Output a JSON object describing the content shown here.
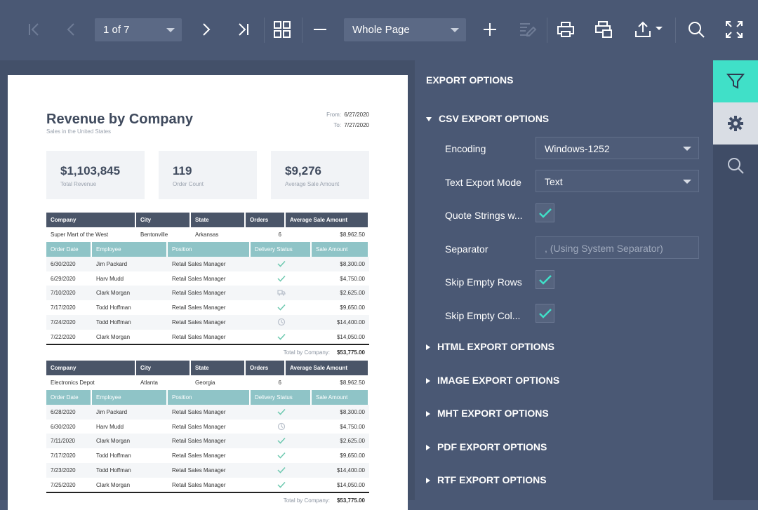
{
  "toolbar": {
    "page_selector": "1 of 7",
    "zoom_selector": "Whole Page",
    "icons": [
      "first-page-icon",
      "prev-page-icon",
      "next-page-icon",
      "last-page-icon",
      "multipage-icon",
      "zoom-out-icon",
      "zoom-in-icon",
      "editing-fields-icon",
      "print-icon",
      "print-page-icon",
      "export-icon",
      "search-icon",
      "fullscreen-icon"
    ]
  },
  "report": {
    "title": "Revenue by Company",
    "subtitle": "Sales in the United States",
    "from_label": "From:",
    "from_value": "6/27/2020",
    "to_label": "To:",
    "to_value": "7/27/2020",
    "kpis": [
      {
        "value": "$1,103,845",
        "label": "Total Revenue"
      },
      {
        "value": "119",
        "label": "Order Count"
      },
      {
        "value": "$9,276",
        "label": "Average Sale Amount"
      }
    ],
    "company_headers": [
      "Company",
      "City",
      "State",
      "Orders",
      "Average Sale Amount"
    ],
    "order_headers": [
      "Order Date",
      "Employee",
      "Position",
      "Delivery Status",
      "Sale Amount"
    ],
    "groups": [
      {
        "company": "Super Mart of the West",
        "city": "Bentonville",
        "state": "Arkansas",
        "orders": "6",
        "avg": "$8,962.50",
        "rows": [
          {
            "date": "6/30/2020",
            "employee": "Jim Packard",
            "position": "Retail Sales Manager",
            "status": "delivered",
            "amount": "$8,300.00"
          },
          {
            "date": "6/29/2020",
            "employee": "Harv Mudd",
            "position": "Retail Sales Manager",
            "status": "delivered",
            "amount": "$4,750.00"
          },
          {
            "date": "7/10/2020",
            "employee": "Clark Morgan",
            "position": "Retail Sales Manager",
            "status": "in-transit",
            "amount": "$2,625.00"
          },
          {
            "date": "7/17/2020",
            "employee": "Todd Hoffman",
            "position": "Retail Sales Manager",
            "status": "delivered",
            "amount": "$9,650.00"
          },
          {
            "date": "7/24/2020",
            "employee": "Todd Hoffman",
            "position": "Retail Sales Manager",
            "status": "pending",
            "amount": "$14,400.00"
          },
          {
            "date": "7/22/2020",
            "employee": "Clark Morgan",
            "position": "Retail Sales Manager",
            "status": "delivered",
            "amount": "$14,050.00"
          }
        ],
        "total_label": "Total by Company:",
        "total_value": "$53,775.00"
      },
      {
        "company": "Electronics Depot",
        "city": "Atlanta",
        "state": "Georgia",
        "orders": "6",
        "avg": "$8,962.50",
        "rows": [
          {
            "date": "6/28/2020",
            "employee": "Jim Packard",
            "position": "Retail Sales Manager",
            "status": "delivered",
            "amount": "$8,300.00"
          },
          {
            "date": "6/30/2020",
            "employee": "Harv Mudd",
            "position": "Retail Sales Manager",
            "status": "pending",
            "amount": "$4,750.00"
          },
          {
            "date": "7/11/2020",
            "employee": "Clark Morgan",
            "position": "Retail Sales Manager",
            "status": "delivered",
            "amount": "$2,625.00"
          },
          {
            "date": "7/17/2020",
            "employee": "Todd Hoffman",
            "position": "Retail Sales Manager",
            "status": "delivered",
            "amount": "$9,650.00"
          },
          {
            "date": "7/23/2020",
            "employee": "Todd Hoffman",
            "position": "Retail Sales Manager",
            "status": "delivered",
            "amount": "$14,400.00"
          },
          {
            "date": "7/25/2020",
            "employee": "Clark Morgan",
            "position": "Retail Sales Manager",
            "status": "delivered",
            "amount": "$14,050.00"
          }
        ],
        "total_label": "Total by Company:",
        "total_value": "$53,775.00"
      }
    ]
  },
  "panel": {
    "title": "EXPORT OPTIONS",
    "csv_section": "CSV EXPORT OPTIONS",
    "fields": {
      "encoding_label": "Encoding",
      "encoding_value": "Windows-1252",
      "text_mode_label": "Text Export Mode",
      "text_mode_value": "Text",
      "quote_label": "Quote Strings w...",
      "quote_checked": true,
      "separator_label": "Separator",
      "separator_placeholder": ", (Using System Separator)",
      "skip_rows_label": "Skip Empty Rows",
      "skip_rows_checked": true,
      "skip_cols_label": "Skip Empty Col...",
      "skip_cols_checked": true
    },
    "collapsed_sections": [
      "HTML EXPORT OPTIONS",
      "IMAGE EXPORT OPTIONS",
      "MHT EXPORT OPTIONS",
      "PDF EXPORT OPTIONS",
      "RTF EXPORT OPTIONS"
    ]
  },
  "rail": {
    "icons": [
      "filter-icon",
      "gear-icon",
      "search-icon"
    ],
    "active": "filter-icon"
  },
  "colors": {
    "accent": "#40e0c8",
    "toolbar_bg": "#4a5874",
    "header_dark": "#4a5568",
    "header_teal": "#8fc4c7"
  }
}
